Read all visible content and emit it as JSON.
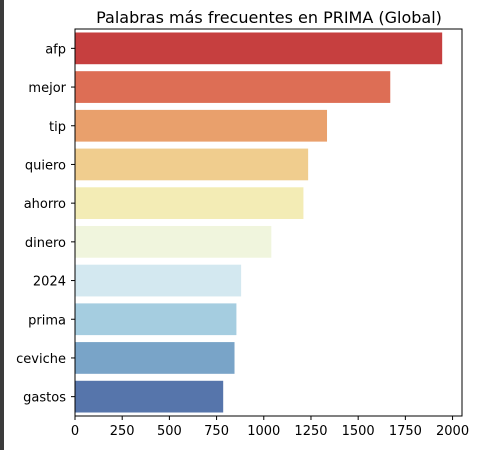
{
  "chart_data": {
    "type": "bar",
    "orientation": "horizontal",
    "title": "Palabras más frecuentes en PRIMA (Global)",
    "xlabel": "",
    "ylabel": "",
    "categories": [
      "afp",
      "mejor",
      "tip",
      "quiero",
      "ahorro",
      "dinero",
      "2024",
      "prima",
      "ceviche",
      "gastos"
    ],
    "values": [
      1945,
      1670,
      1335,
      1235,
      1210,
      1040,
      880,
      855,
      845,
      785
    ],
    "colors": [
      "#c63f3f",
      "#dd6e55",
      "#e9a06c",
      "#f0cd8e",
      "#f3ecb5",
      "#f0f5dd",
      "#d3e8f0",
      "#a5cde0",
      "#79a4c8",
      "#5675ab"
    ],
    "xlim": [
      0,
      2050
    ],
    "xticks": [
      0,
      250,
      500,
      750,
      1000,
      1250,
      1500,
      1750,
      2000
    ],
    "grid": false,
    "legend": "none"
  }
}
